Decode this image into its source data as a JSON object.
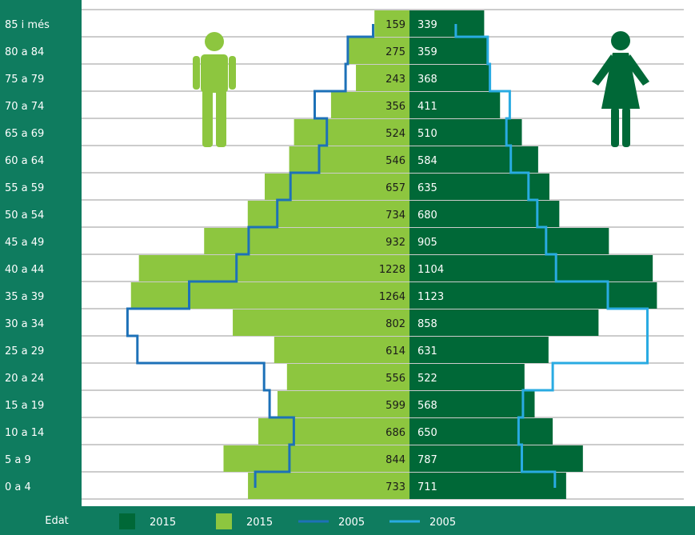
{
  "chart_data": {
    "type": "bar",
    "subtype": "population-pyramid",
    "categories": [
      "85 i més",
      "80 a 84",
      "75 a 79",
      "70 a 74",
      "65 a 69",
      "60 a 64",
      "55 a 59",
      "50 a 54",
      "45 a 49",
      "40 a 44",
      "35 a 39",
      "30 a 34",
      "25 a 29",
      "20 a 24",
      "15 a 19",
      "10 a 14",
      "5 a 9",
      "0 a 4"
    ],
    "xlabel": "Edat",
    "series": [
      {
        "values": [
          159,
          275,
          243,
          356,
          524,
          546,
          657,
          734,
          932,
          1228,
          1264,
          802,
          614,
          556,
          599,
          686,
          844,
          733
        ],
        "color": "#8dc63f",
        "side": "left",
        "style": "bar"
      },
      {
        "values": [
          339,
          359,
          368,
          411,
          510,
          584,
          635,
          680,
          905,
          1104,
          1123,
          858,
          631,
          522,
          568,
          650,
          787,
          711
        ],
        "color": "#006837",
        "side": "right",
        "style": "bar"
      },
      {
        "values": [
          165,
          280,
          290,
          430,
          375,
          410,
          540,
          600,
          730,
          785,
          1000,
          1280,
          1235,
          660,
          635,
          525,
          545,
          700
        ],
        "color": "#1d71b8",
        "side": "left",
        "style": "step"
      },
      {
        "values": [
          210,
          355,
          365,
          455,
          440,
          460,
          540,
          580,
          620,
          665,
          900,
          1080,
          1080,
          650,
          515,
          495,
          510,
          660
        ],
        "color": "#29abe2",
        "side": "right",
        "style": "step"
      }
    ],
    "legend": [
      {
        "label": "2015",
        "color": "#006837",
        "kind": "box"
      },
      {
        "label": "2015",
        "color": "#8dc63f",
        "kind": "box"
      },
      {
        "label": "2005",
        "color": "#1d71b8",
        "kind": "line"
      },
      {
        "label": "2005",
        "color": "#29abe2",
        "kind": "line"
      }
    ],
    "legend_position": "bottom",
    "grid": true
  },
  "colors": {
    "panel": "#0f7c5f",
    "male": "#8dc63f",
    "female": "#006837",
    "line_male": "#1d71b8",
    "line_female": "#29abe2"
  },
  "icons": {
    "male": "man-icon",
    "female": "woman-icon"
  }
}
